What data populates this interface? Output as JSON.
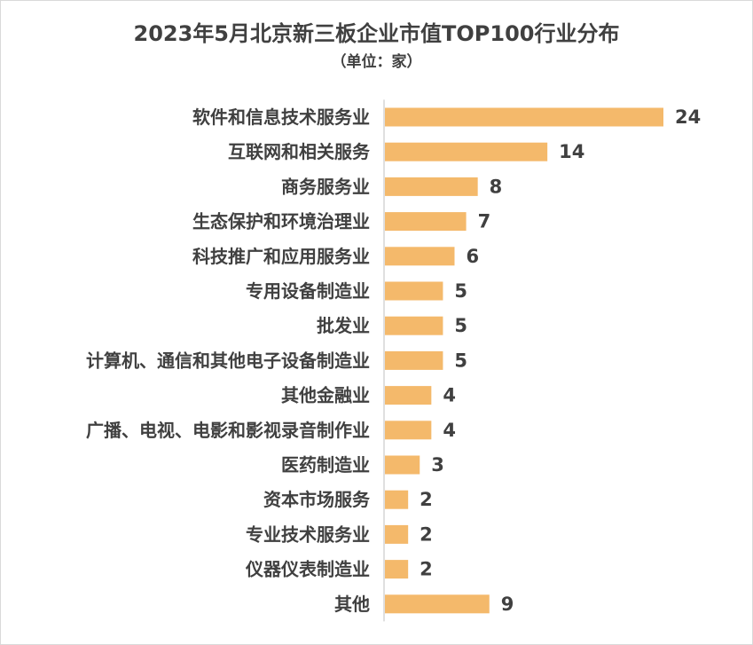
{
  "chart_data": {
    "type": "bar",
    "orientation": "horizontal",
    "title": "2023年5月北京新三板企业市值TOP100行业分布",
    "subtitle": "（单位：家）",
    "categories": [
      "软件和信息技术服务业",
      "互联网和相关服务",
      "商务服务业",
      "生态保护和环境治理业",
      "科技推广和应用服务业",
      "专用设备制造业",
      "批发业",
      "计算机、通信和其他电子设备制造业",
      "其他金融业",
      "广播、电视、电影和影视录音制作业",
      "医药制造业",
      "资本市场服务",
      "专业技术服务业",
      "仪器仪表制造业",
      "其他"
    ],
    "values": [
      24,
      14,
      8,
      7,
      6,
      5,
      5,
      5,
      4,
      4,
      3,
      2,
      2,
      2,
      9
    ],
    "data_labels": true,
    "grid": false,
    "bar_color": "#f4b96b"
  }
}
